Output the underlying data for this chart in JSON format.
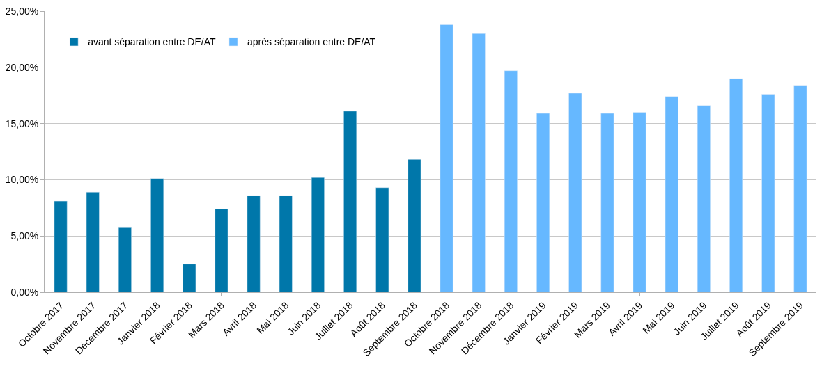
{
  "chart_data": {
    "type": "bar",
    "categories": [
      "Octobre 2017",
      "Novembre 2017",
      "Décembre 2017",
      "Janvier 2018",
      "Février 2018",
      "Mars 2018",
      "Avril 2018",
      "Mai 2018",
      "Juin 2018",
      "Juillet 2018",
      "Août 2018",
      "Septembre 2018",
      "Octobre 2018",
      "Novembre 2018",
      "Décembre 2018",
      "Janvier 2019",
      "Février 2019",
      "Mars 2019",
      "Avril 2019",
      "Mai 2019",
      "Juin 2019",
      "Juillet 2019",
      "Août 2019",
      "Septembre 2019"
    ],
    "series": [
      {
        "name": "avant séparation entre DE/AT",
        "color": "#0077aa",
        "values": [
          8.1,
          8.9,
          5.8,
          10.1,
          2.5,
          7.4,
          8.6,
          8.6,
          10.2,
          16.1,
          9.3,
          11.8,
          null,
          null,
          null,
          null,
          null,
          null,
          null,
          null,
          null,
          null,
          null,
          null
        ]
      },
      {
        "name": "après séparation entre DE/AT",
        "color": "#66b8ff",
        "values": [
          null,
          null,
          null,
          null,
          null,
          null,
          null,
          null,
          null,
          null,
          null,
          null,
          23.8,
          23.0,
          19.7,
          15.9,
          17.7,
          15.9,
          16.0,
          17.4,
          16.6,
          19.0,
          17.6,
          18.4
        ]
      }
    ],
    "ylim": [
      0,
      25
    ],
    "yticks": [
      {
        "value": 0,
        "label": "0,00%"
      },
      {
        "value": 5,
        "label": "5,00%"
      },
      {
        "value": 10,
        "label": "10,00%"
      },
      {
        "value": 15,
        "label": "15,00%"
      },
      {
        "value": 20,
        "label": "20,00%"
      },
      {
        "value": 25,
        "label": "25,00%"
      }
    ],
    "grid": "y",
    "legend": "top left"
  }
}
